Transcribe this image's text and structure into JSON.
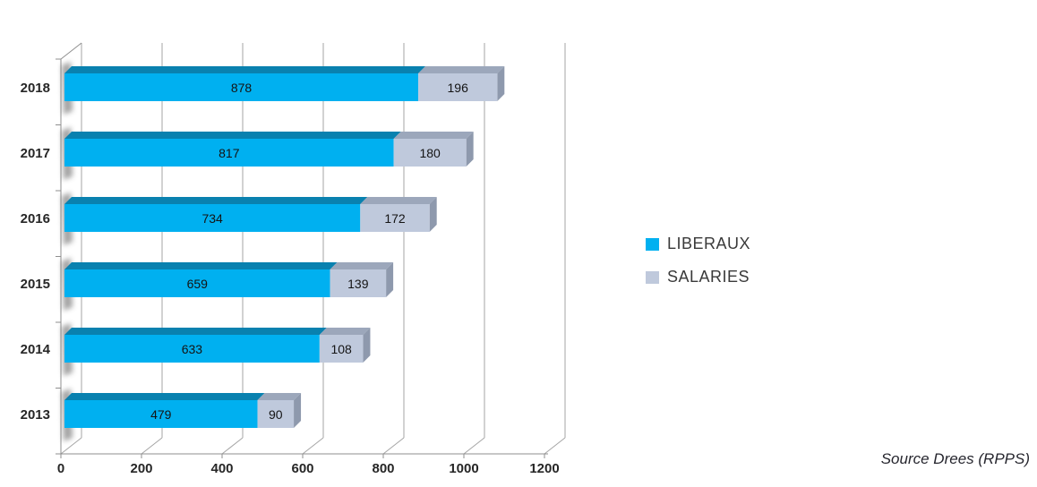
{
  "chart_data": {
    "type": "bar",
    "orientation": "horizontal",
    "stacked": true,
    "style": "3d",
    "categories": [
      "2018",
      "2017",
      "2016",
      "2015",
      "2014",
      "2013"
    ],
    "series": [
      {
        "name": "LIBERAUX",
        "color": "#00B0F0",
        "color_top": "#0981AF",
        "values": [
          878,
          817,
          734,
          659,
          633,
          479
        ]
      },
      {
        "name": "SALARIES",
        "color": "#BFC9DC",
        "color_top": "#9CA7BB",
        "color_side": "#8E99AD",
        "values": [
          196,
          180,
          172,
          139,
          108,
          90
        ]
      }
    ],
    "x_ticks": [
      0,
      200,
      400,
      600,
      800,
      1000,
      1200
    ],
    "xlim": [
      0,
      1260
    ],
    "gridlines": true,
    "legend_position": "right",
    "source_note": "Source Drees (RPPS)"
  },
  "colors": {
    "gridline": "#A5A5A5",
    "axis": "#8F8F8F",
    "tick_label": "#262626",
    "bar_label": "#141414",
    "legend_text": "#3A3A3A",
    "source_text": "#26262E",
    "shadow": "#4A4A4A"
  }
}
